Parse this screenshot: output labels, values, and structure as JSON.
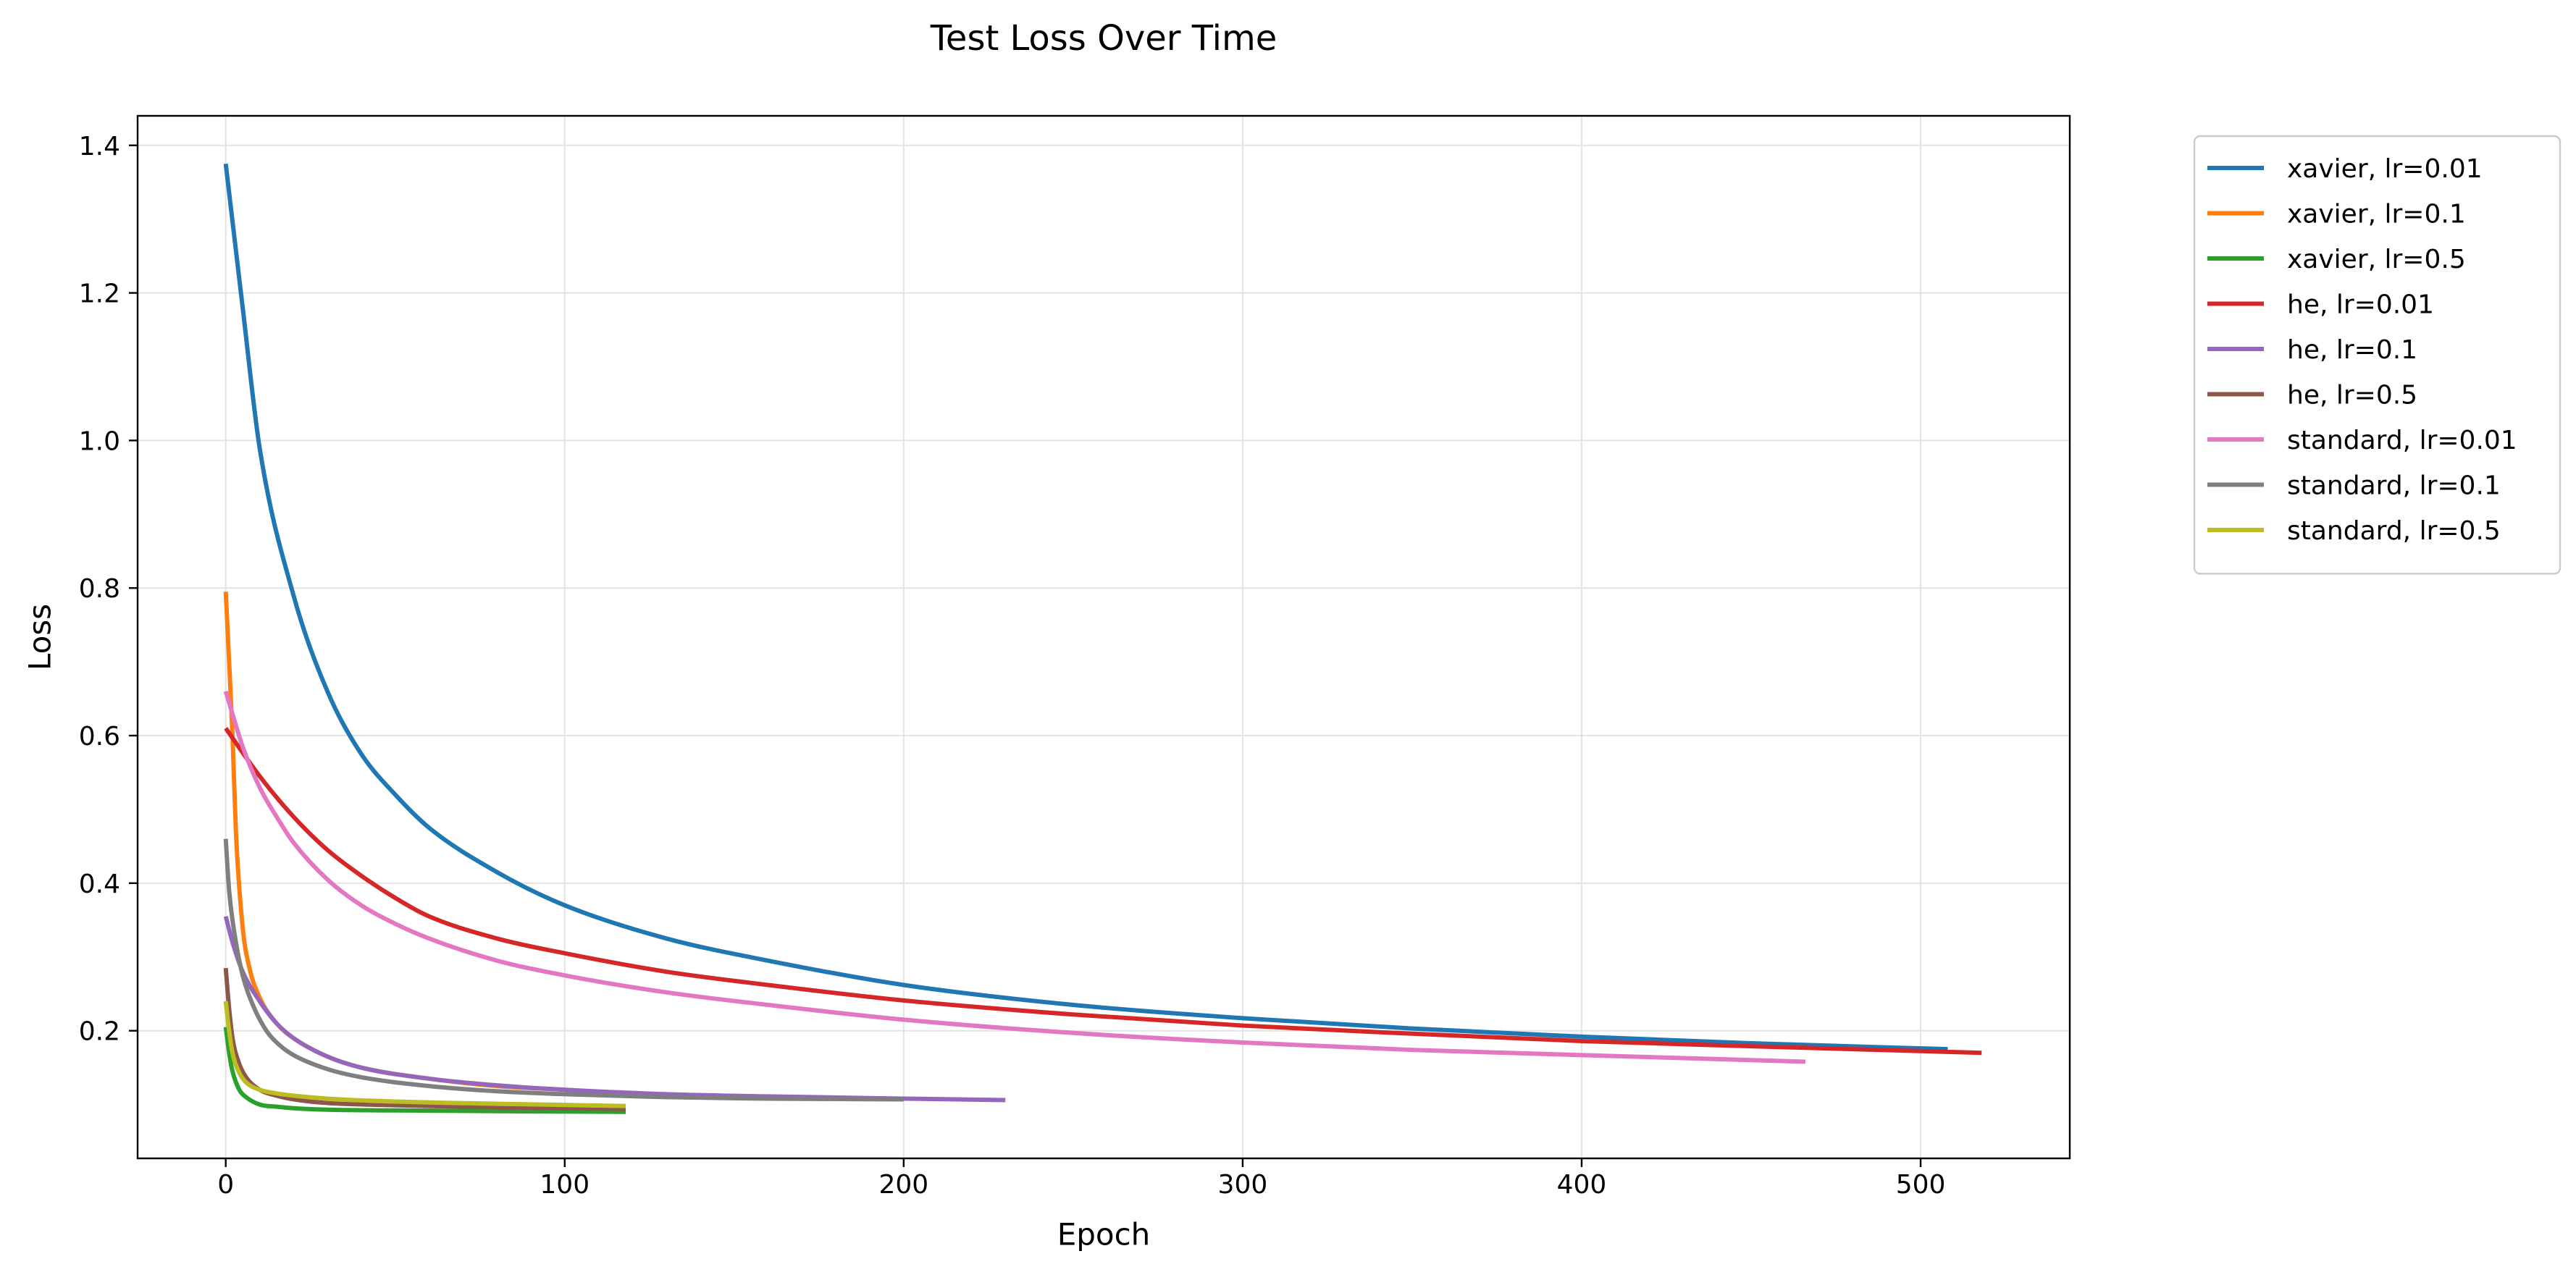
{
  "chart_data": {
    "type": "line",
    "title": "Test Loss Over Time",
    "xlabel": "Epoch",
    "ylabel": "Loss",
    "xlim": [
      -26,
      544
    ],
    "ylim": [
      0.027,
      1.44
    ],
    "xticks": [
      0,
      100,
      200,
      300,
      400,
      500
    ],
    "yticks": [
      0.2,
      0.4,
      0.6,
      0.8,
      1.0,
      1.2,
      1.4
    ],
    "xtick_labels": [
      "0",
      "100",
      "200",
      "300",
      "400",
      "500"
    ],
    "ytick_labels": [
      "0.2",
      "0.4",
      "0.6",
      "0.8",
      "1.0",
      "1.2",
      "1.4"
    ],
    "grid": true,
    "legend_position": "outside upper-right",
    "series": [
      {
        "name": "xavier, lr=0.01",
        "color": "#1f77b4",
        "x": [
          0,
          5,
          10,
          20,
          30,
          40,
          50,
          60,
          80,
          100,
          130,
          160,
          200,
          250,
          300,
          350,
          400,
          450,
          508
        ],
        "y": [
          1.375,
          1.18,
          0.99,
          0.79,
          0.66,
          0.575,
          0.52,
          0.475,
          0.415,
          0.37,
          0.325,
          0.295,
          0.262,
          0.235,
          0.217,
          0.203,
          0.192,
          0.183,
          0.175
        ]
      },
      {
        "name": "xavier, lr=0.1",
        "color": "#ff7f0e",
        "x": [
          0,
          1,
          2,
          3,
          5,
          7,
          10,
          15,
          20,
          30,
          40,
          60,
          80,
          100,
          118
        ],
        "y": [
          0.795,
          0.7,
          0.6,
          0.47,
          0.34,
          0.285,
          0.245,
          0.21,
          0.19,
          0.165,
          0.15,
          0.135,
          0.125,
          0.12,
          0.115
        ]
      },
      {
        "name": "xavier, lr=0.5",
        "color": "#2ca02c",
        "x": [
          0,
          1,
          2,
          4,
          6,
          10,
          15,
          20,
          30,
          50,
          80,
          118
        ],
        "y": [
          0.205,
          0.17,
          0.145,
          0.12,
          0.11,
          0.1,
          0.097,
          0.095,
          0.093,
          0.092,
          0.091,
          0.09
        ]
      },
      {
        "name": "he, lr=0.01",
        "color": "#d62728",
        "x": [
          0,
          10,
          20,
          30,
          40,
          50,
          60,
          80,
          100,
          130,
          160,
          200,
          250,
          300,
          350,
          400,
          450,
          518
        ],
        "y": [
          0.61,
          0.545,
          0.49,
          0.445,
          0.41,
          0.38,
          0.355,
          0.325,
          0.305,
          0.28,
          0.262,
          0.241,
          0.222,
          0.207,
          0.196,
          0.186,
          0.179,
          0.17
        ]
      },
      {
        "name": "he, lr=0.1",
        "color": "#9467bd",
        "x": [
          0,
          2,
          5,
          10,
          15,
          20,
          30,
          40,
          60,
          80,
          100,
          130,
          160,
          200,
          230
        ],
        "y": [
          0.355,
          0.32,
          0.28,
          0.24,
          0.21,
          0.19,
          0.165,
          0.15,
          0.135,
          0.126,
          0.12,
          0.114,
          0.111,
          0.108,
          0.106
        ]
      },
      {
        "name": "he, lr=0.5",
        "color": "#8c564b",
        "x": [
          0,
          1,
          2,
          4,
          6,
          10,
          15,
          20,
          30,
          50,
          80,
          118
        ],
        "y": [
          0.285,
          0.23,
          0.19,
          0.155,
          0.137,
          0.12,
          0.112,
          0.107,
          0.102,
          0.099,
          0.096,
          0.094
        ]
      },
      {
        "name": "standard, lr=0.01",
        "color": "#e377c2",
        "x": [
          0,
          5,
          10,
          15,
          20,
          30,
          40,
          50,
          60,
          80,
          100,
          130,
          160,
          200,
          250,
          300,
          350,
          400,
          466
        ],
        "y": [
          0.66,
          0.585,
          0.53,
          0.49,
          0.455,
          0.405,
          0.37,
          0.345,
          0.325,
          0.295,
          0.275,
          0.252,
          0.235,
          0.215,
          0.197,
          0.184,
          0.174,
          0.167,
          0.158
        ]
      },
      {
        "name": "standard, lr=0.1",
        "color": "#7f7f7f",
        "x": [
          0,
          1,
          3,
          5,
          8,
          12,
          16,
          20,
          30,
          40,
          60,
          80,
          100,
          130,
          160,
          200
        ],
        "y": [
          0.46,
          0.39,
          0.32,
          0.275,
          0.235,
          0.2,
          0.18,
          0.167,
          0.148,
          0.137,
          0.125,
          0.118,
          0.114,
          0.11,
          0.108,
          0.107
        ]
      },
      {
        "name": "standard, lr=0.5",
        "color": "#bcbd22",
        "x": [
          0,
          1,
          2,
          4,
          6,
          10,
          15,
          20,
          30,
          50,
          80,
          118
        ],
        "y": [
          0.24,
          0.2,
          0.17,
          0.143,
          0.13,
          0.12,
          0.115,
          0.112,
          0.108,
          0.104,
          0.101,
          0.098
        ]
      }
    ]
  }
}
